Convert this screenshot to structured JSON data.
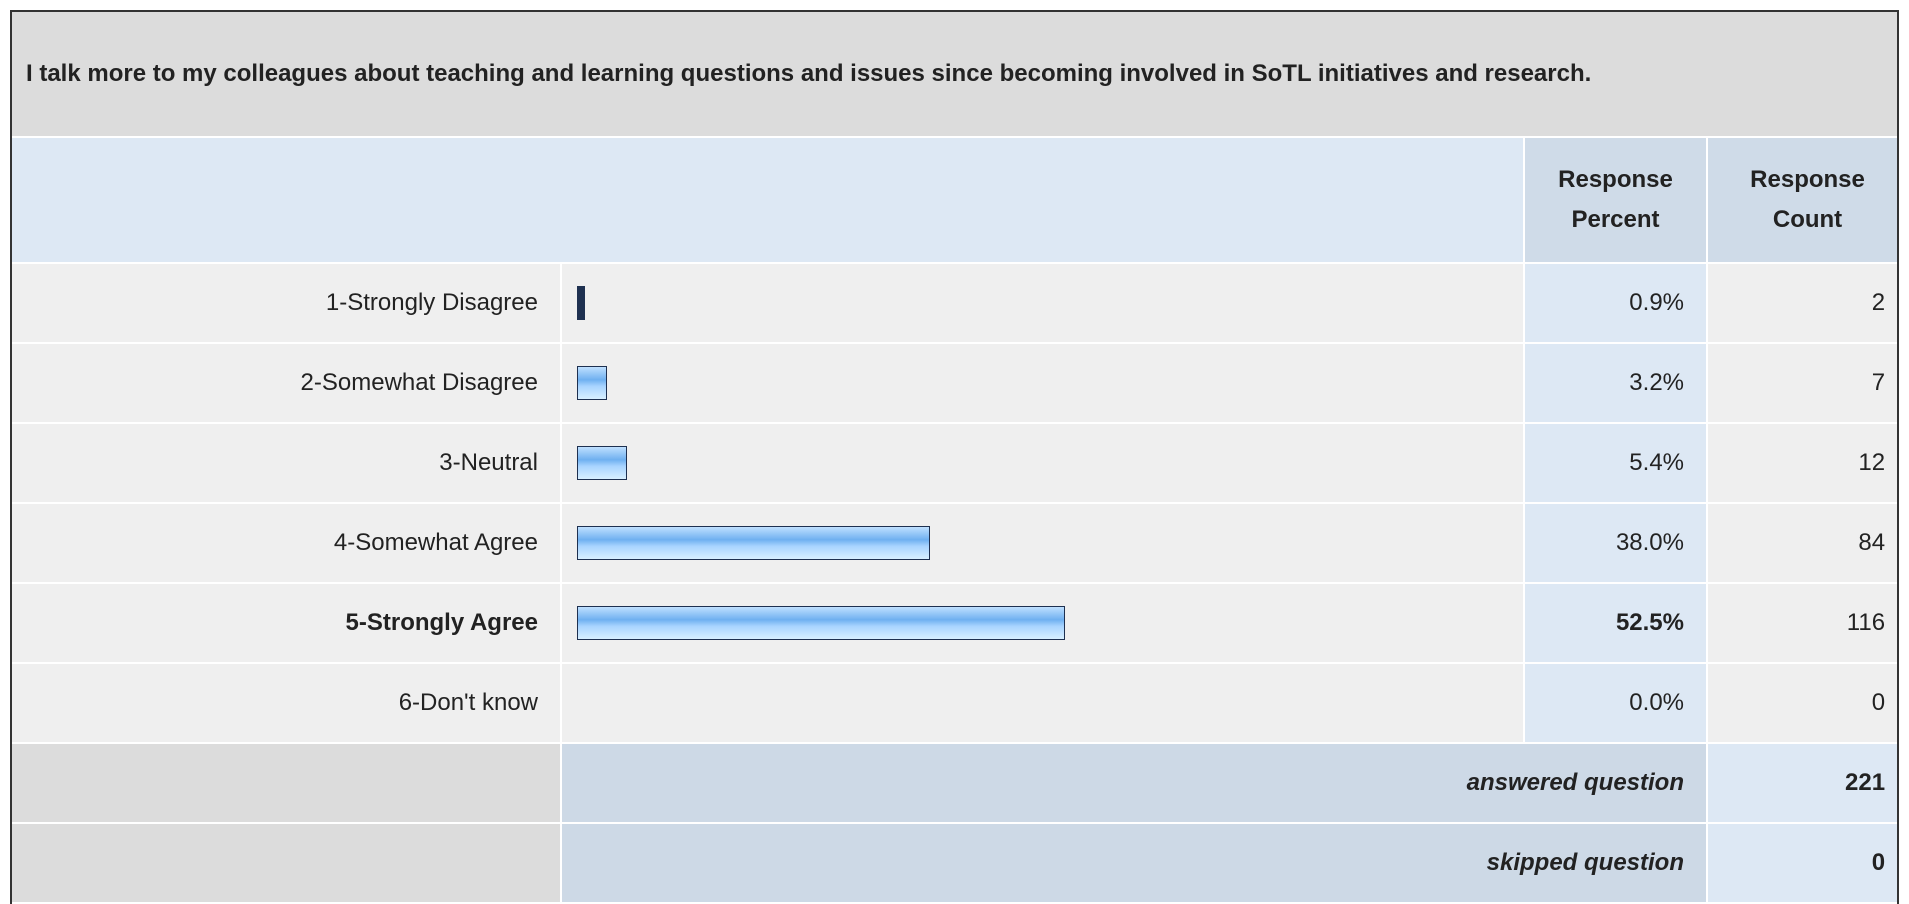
{
  "question": "I talk more to my colleagues about teaching and learning questions and issues since becoming involved in SoTL initiatives and research.",
  "headers": {
    "percent": "Response Percent",
    "count": "Response Count"
  },
  "rows": [
    {
      "label": "1-Strongly Disagree",
      "percent": 0.9,
      "percent_label": "0.9%",
      "count": 2
    },
    {
      "label": "2-Somewhat Disagree",
      "percent": 3.2,
      "percent_label": "3.2%",
      "count": 7
    },
    {
      "label": "3-Neutral",
      "percent": 5.4,
      "percent_label": "5.4%",
      "count": 12
    },
    {
      "label": "4-Somewhat Agree",
      "percent": 38.0,
      "percent_label": "38.0%",
      "count": 84
    },
    {
      "label": "5-Strongly Agree",
      "percent": 52.5,
      "percent_label": "52.5%",
      "count": 116,
      "bold": true
    },
    {
      "label": "6-Don't know",
      "percent": 0.0,
      "percent_label": "0.0%",
      "count": 0
    }
  ],
  "answered": {
    "label": "answered question",
    "count": 221
  },
  "skipped": {
    "label": "skipped question",
    "count": 0
  }
}
